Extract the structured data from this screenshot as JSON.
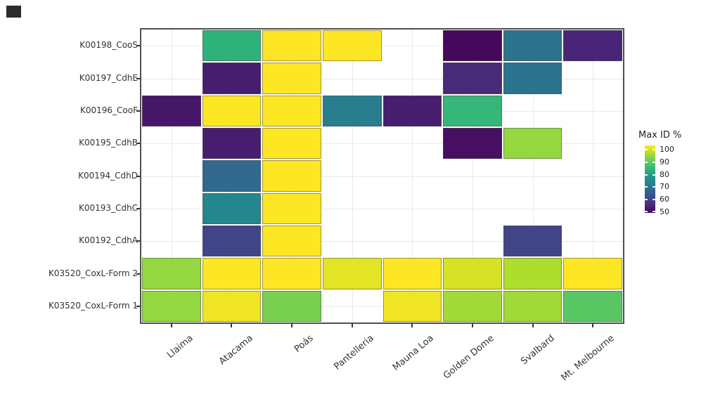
{
  "legend": {
    "title": "Max ID %"
  },
  "chart_data": {
    "type": "heatmap",
    "legend_title": "Max ID %",
    "legend_position": "right",
    "grid": true,
    "columns": [
      "Llaima",
      "Atacama",
      "Poás",
      "Pantelleria",
      "Mauna Loa",
      "Golden Dome",
      "Svalbard",
      "Mt. Melbourne"
    ],
    "rows": [
      "K00198_CooS",
      "K00197_CdhE",
      "K00196_CooF",
      "K00195_CdhB",
      "K00194_CdhD",
      "K00193_CdhC",
      "K00192_CdhA",
      "K03520_CoxL-Form 2",
      "K03520_CoxL-Form 1"
    ],
    "values": [
      [
        null,
        82,
        100,
        100,
        null,
        51,
        69,
        55
      ],
      [
        null,
        54,
        100,
        null,
        null,
        56,
        69,
        null
      ],
      [
        53,
        100,
        100,
        71,
        54,
        83,
        null,
        null
      ],
      [
        null,
        54,
        100,
        null,
        null,
        52,
        92,
        null
      ],
      [
        null,
        67,
        100,
        null,
        null,
        null,
        null,
        null
      ],
      [
        null,
        73,
        100,
        null,
        null,
        null,
        null,
        null
      ],
      [
        null,
        60,
        100,
        null,
        null,
        null,
        60,
        null
      ],
      [
        92,
        100,
        100,
        98,
        100,
        97,
        94,
        100
      ],
      [
        92,
        99,
        90,
        null,
        99,
        93,
        93,
        87
      ]
    ],
    "scale": {
      "label": "Max ID %",
      "min": 50,
      "max": 100,
      "palette": "viridis",
      "stops": [
        "#440154",
        "#482576",
        "#414487",
        "#35608d",
        "#2a788e",
        "#21908c",
        "#22a884",
        "#43bf71",
        "#7ad151",
        "#bbdf27",
        "#fde725"
      ]
    },
    "colorbar_ticks": [
      100,
      90,
      80,
      70,
      60,
      50
    ],
    "missing_color": "#ffffff"
  }
}
